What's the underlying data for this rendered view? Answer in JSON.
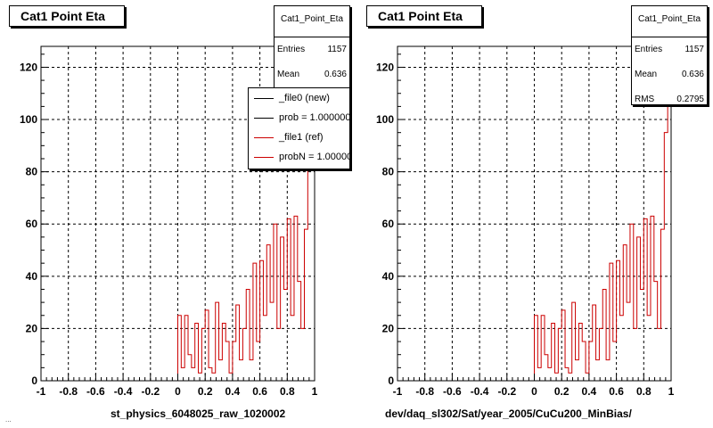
{
  "footer_text": "...",
  "chart_data": [
    {
      "type": "bar",
      "title": "Cat1 Point Eta",
      "stats": {
        "name": "Cat1_Point_Eta",
        "entries_label": "Entries",
        "entries": "1157",
        "mean_label": "Mean",
        "mean": "0.636"
      },
      "legend": [
        {
          "text": "_file0 (new)",
          "color": "#000000"
        },
        {
          "text": "prob = 1.000000",
          "color": "#000000"
        },
        {
          "text": "_file1 (ref)",
          "color": "#cc0000"
        },
        {
          "text": "probN = 1.000000",
          "color": "#cc0000"
        }
      ],
      "xlabel": "st_physics_6048025_raw_1020002",
      "ylabel": "",
      "xlim": [
        -1,
        1
      ],
      "ylim": [
        0,
        128
      ],
      "xticks": [
        "-1",
        "-0.8",
        "-0.6",
        "-0.4",
        "-0.2",
        "0",
        "0.2",
        "0.4",
        "0.6",
        "0.8",
        "1"
      ],
      "yticks": [
        "0",
        "20",
        "40",
        "60",
        "80",
        "100",
        "120"
      ],
      "grid": true,
      "series": [
        {
          "color": "#cc0000",
          "x": [
            0.0125,
            0.0375,
            0.0625,
            0.0875,
            0.1125,
            0.1375,
            0.1625,
            0.1875,
            0.2125,
            0.2375,
            0.2625,
            0.2875,
            0.3125,
            0.3375,
            0.3625,
            0.3875,
            0.4125,
            0.4375,
            0.4625,
            0.4875,
            0.5125,
            0.5375,
            0.5625,
            0.5875,
            0.6125,
            0.6375,
            0.6625,
            0.6875,
            0.7125,
            0.7375,
            0.7625,
            0.7875,
            0.8125,
            0.8375,
            0.8625,
            0.8875,
            0.9125,
            0.9375,
            0.9625,
            0.9875
          ],
          "values": [
            25,
            5,
            25,
            10,
            5,
            22,
            3,
            20,
            27,
            5,
            3,
            30,
            8,
            22,
            15,
            3,
            15,
            29,
            8,
            20,
            35,
            8,
            45,
            15,
            46,
            25,
            52,
            30,
            60,
            20,
            55,
            35,
            62,
            25,
            63,
            38,
            20,
            58,
            95,
            121
          ]
        }
      ]
    },
    {
      "type": "bar",
      "title": "Cat1 Point Eta",
      "stats": {
        "name": "Cat1_Point_Eta",
        "entries_label": "Entries",
        "entries": "1157",
        "mean_label": "Mean",
        "mean": "0.636",
        "rms_label": "RMS",
        "rms": "0.2795"
      },
      "xlabel": "dev/daq_sl302/Sat/year_2005/CuCu200_MinBias/",
      "ylabel": "",
      "xlim": [
        -1,
        1
      ],
      "ylim": [
        0,
        128
      ],
      "xticks": [
        "-1",
        "-0.8",
        "-0.6",
        "-0.4",
        "-0.2",
        "0",
        "0.2",
        "0.4",
        "0.6",
        "0.8",
        "1"
      ],
      "yticks": [
        "0",
        "20",
        "40",
        "60",
        "80",
        "100",
        "120"
      ],
      "grid": true,
      "series": [
        {
          "color": "#cc0000",
          "x": [
            0.0125,
            0.0375,
            0.0625,
            0.0875,
            0.1125,
            0.1375,
            0.1625,
            0.1875,
            0.2125,
            0.2375,
            0.2625,
            0.2875,
            0.3125,
            0.3375,
            0.3625,
            0.3875,
            0.4125,
            0.4375,
            0.4625,
            0.4875,
            0.5125,
            0.5375,
            0.5625,
            0.5875,
            0.6125,
            0.6375,
            0.6625,
            0.6875,
            0.7125,
            0.7375,
            0.7625,
            0.7875,
            0.8125,
            0.8375,
            0.8625,
            0.8875,
            0.9125,
            0.9375,
            0.9625,
            0.9875
          ],
          "values": [
            25,
            5,
            25,
            10,
            5,
            22,
            3,
            20,
            27,
            5,
            3,
            30,
            8,
            22,
            15,
            3,
            15,
            29,
            8,
            20,
            35,
            8,
            45,
            15,
            46,
            25,
            52,
            30,
            60,
            20,
            55,
            35,
            62,
            25,
            63,
            38,
            20,
            58,
            95,
            121
          ]
        }
      ]
    }
  ]
}
